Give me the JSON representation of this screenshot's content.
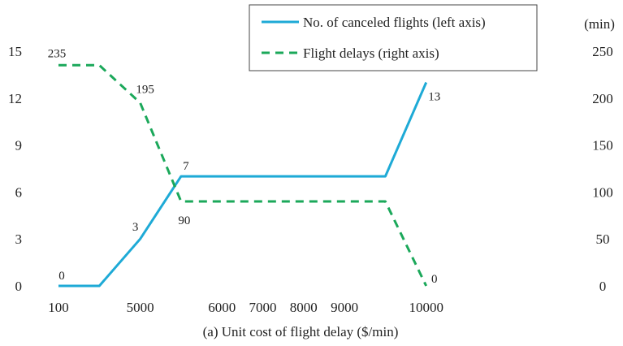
{
  "chart_data": {
    "type": "line",
    "xlabel": "(a) Unit cost of flight delay ($/min)",
    "categories": [
      "100",
      "",
      "5000",
      "",
      "6000",
      "7000",
      "8000",
      "9000",
      "",
      "10000"
    ],
    "x_ticks": [
      "100",
      "5000",
      "6000",
      "7000",
      "8000",
      "9000",
      "10000"
    ],
    "y_left": {
      "ticks": [
        "0",
        "3",
        "6",
        "9",
        "12",
        "15"
      ],
      "ylim": [
        0,
        15
      ]
    },
    "y_right": {
      "label": "(min)",
      "ticks": [
        "0",
        "50",
        "100",
        "150",
        "200",
        "250"
      ],
      "ylim": [
        0,
        250
      ]
    },
    "series": [
      {
        "name": "No. of canceled flights (left axis)",
        "axis": "left",
        "color": "#1EAAD6",
        "style": "solid",
        "values": [
          0,
          0,
          3,
          7,
          7,
          7,
          7,
          7,
          7,
          13
        ],
        "data_labels": [
          "0",
          "",
          "3",
          "7",
          "",
          "",
          "",
          "",
          "",
          "13"
        ]
      },
      {
        "name": "Flight delays (right axis)",
        "axis": "right",
        "color": "#1BA85A",
        "style": "dashed",
        "values": [
          235,
          235,
          195,
          90,
          90,
          90,
          90,
          90,
          90,
          0
        ],
        "data_labels": [
          "235",
          "",
          "195",
          "90",
          "",
          "",
          "",
          "",
          "",
          "0"
        ]
      }
    ],
    "legend_position": "top-right",
    "grid": false
  }
}
